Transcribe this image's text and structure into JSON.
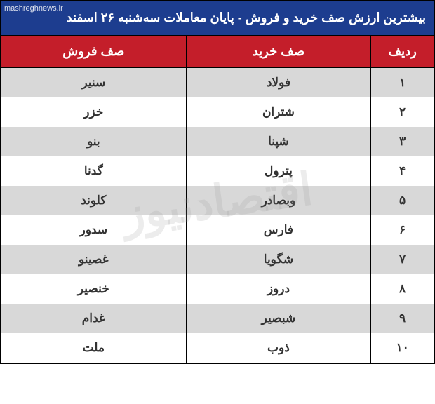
{
  "title": "بیشترین ارزش صف خرید و فروش - پایان معاملات  سه‌شنبه ۲۶ اسفند",
  "source_label": "mashreghnews.ir",
  "watermark_text": "اقتصادنیوز",
  "columns": {
    "rank": "ردیف",
    "buy": "صف خرید",
    "sell": "صف فروش"
  },
  "rows": [
    {
      "rank": "۱",
      "buy": "فولاد",
      "sell": "سنیر"
    },
    {
      "rank": "۲",
      "buy": "شتران",
      "sell": "خزر"
    },
    {
      "rank": "۳",
      "buy": "شپنا",
      "sell": "بنو"
    },
    {
      "rank": "۴",
      "buy": "پترول",
      "sell": "گدنا"
    },
    {
      "rank": "۵",
      "buy": "وبصادر",
      "sell": "کلوند"
    },
    {
      "rank": "۶",
      "buy": "فارس",
      "sell": "سدور"
    },
    {
      "rank": "۷",
      "buy": "شگویا",
      "sell": "غصینو"
    },
    {
      "rank": "۸",
      "buy": "دروز",
      "sell": "خنصیر"
    },
    {
      "rank": "۹",
      "buy": "شبصیر",
      "sell": "غدام"
    },
    {
      "rank": "۱۰",
      "buy": "ذوب",
      "sell": "ملت"
    }
  ],
  "style": {
    "title_bg": "#1d3d8f",
    "header_bg": "#c41e2a",
    "row_odd_bg": "#d8d8d8",
    "row_even_bg": "#ffffff",
    "text_color": "#333333",
    "title_fontsize": 18,
    "header_fontsize": 18,
    "cell_fontsize": 17
  }
}
